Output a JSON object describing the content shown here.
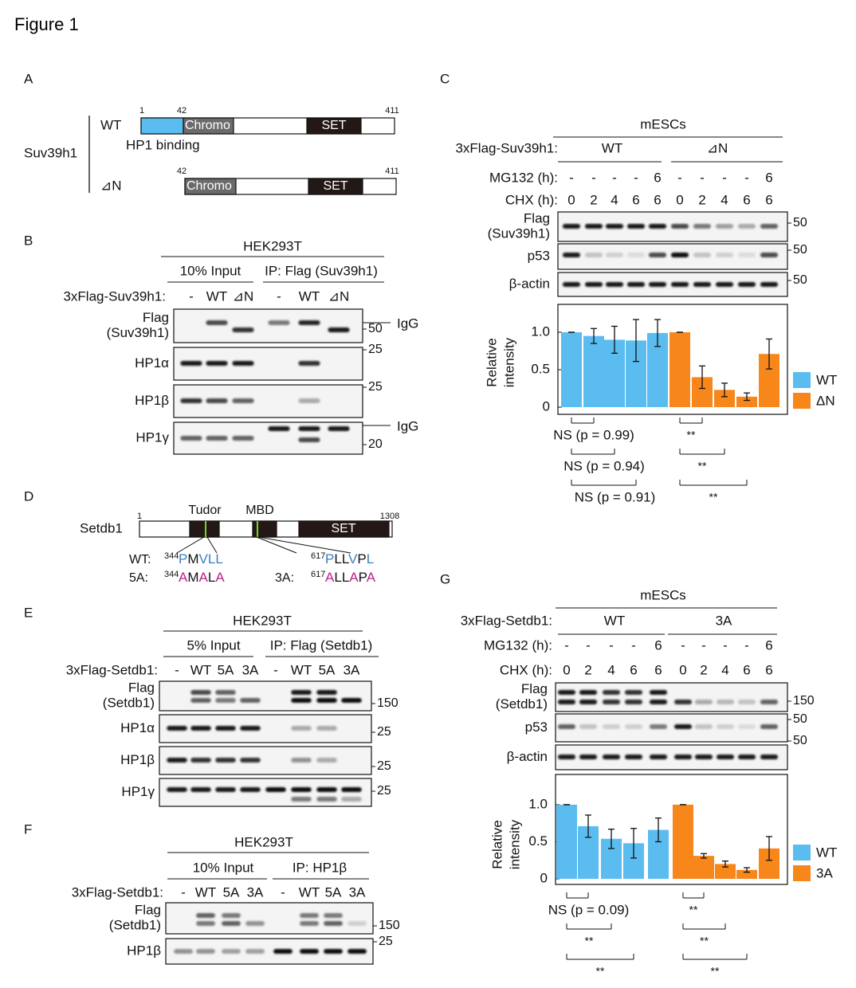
{
  "title": "Figure 1",
  "panel_a": {
    "label": "A",
    "protein": "Suv39h1",
    "constructs": [
      {
        "name": "WT",
        "start": 1,
        "mid": 42,
        "end": 411,
        "domains": [
          "Chromo",
          "SET"
        ],
        "note": "HP1 binding"
      },
      {
        "name": "⊿N",
        "mid": 42,
        "end": 411,
        "domains": [
          "Chromo",
          "SET"
        ]
      }
    ]
  },
  "panel_b": {
    "label": "B",
    "cell": "HEK293T",
    "groups": [
      "10% Input",
      "IP: Flag (Suv39h1)"
    ],
    "construct_label": "3xFlag-Suv39h1:",
    "lanes": [
      "-",
      "WT",
      "⊿N",
      "-",
      "WT",
      "⊿N"
    ],
    "rows": [
      [
        "Flag",
        "(Suv39h1)"
      ],
      [
        "HP1α"
      ],
      [
        "HP1β"
      ],
      [
        "HP1γ"
      ]
    ],
    "markers": [
      50,
      "IgG",
      25,
      25,
      "IgG",
      20
    ]
  },
  "panel_c": {
    "label": "C",
    "cell": "mESCs",
    "construct_label": "3xFlag-Suv39h1:",
    "groups": [
      "WT",
      "⊿N"
    ],
    "mg132_label": "MG132 (h):",
    "mg132": [
      "-",
      "-",
      "-",
      "-",
      6,
      "-",
      "-",
      "-",
      "-",
      6
    ],
    "chx_label": "CHX (h):",
    "chx": [
      0,
      2,
      4,
      6,
      6,
      0,
      2,
      4,
      6,
      6
    ],
    "rows": [
      [
        "Flag",
        "(Suv39h1)"
      ],
      [
        "p53"
      ],
      [
        "β-actin"
      ]
    ],
    "markers": [
      50,
      50,
      50
    ]
  },
  "panel_d": {
    "label": "D",
    "protein": "Setdb1",
    "start": 1,
    "end": 1308,
    "domains": [
      "Tudor",
      "MBD",
      "SET"
    ],
    "motifs": [
      {
        "name": "WT:",
        "position": 344,
        "sequence": "PMVLL"
      },
      {
        "name": "5A:",
        "position": 344,
        "sequence": "AMALA"
      },
      {
        "position": 617,
        "sequence": "PLLVPL"
      },
      {
        "name": "3A:",
        "position": 617,
        "sequence": "ALLAPA"
      }
    ]
  },
  "panel_e": {
    "label": "E",
    "cell": "HEK293T",
    "groups": [
      "5% Input",
      "IP: Flag (Setdb1)"
    ],
    "construct_label": "3xFlag-Setdb1:",
    "lanes": [
      "-",
      "WT",
      "5A",
      "3A",
      "-",
      "WT",
      "5A",
      "3A"
    ],
    "rows": [
      [
        "Flag",
        "(Setdb1)"
      ],
      [
        "HP1α"
      ],
      [
        "HP1β"
      ],
      [
        "HP1γ"
      ]
    ],
    "markers": [
      150,
      25,
      25,
      25
    ]
  },
  "panel_f": {
    "label": "F",
    "cell": "HEK293T",
    "groups": [
      "10% Input",
      "IP: HP1β"
    ],
    "construct_label": "3xFlag-Setdb1:",
    "lanes": [
      "-",
      "WT",
      "5A",
      "3A",
      "-",
      "WT",
      "5A",
      "3A"
    ],
    "rows": [
      [
        "Flag",
        "(Setdb1)"
      ],
      [
        "HP1β"
      ]
    ],
    "markers": [
      150,
      25
    ]
  },
  "panel_g": {
    "label": "G",
    "cell": "mESCs",
    "construct_label": "3xFlag-Setdb1:",
    "groups": [
      "WT",
      "3A"
    ],
    "mg132_label": "MG132 (h):",
    "mg132": [
      "-",
      "-",
      "-",
      "-",
      6,
      "-",
      "-",
      "-",
      "-",
      6
    ],
    "chx_label": "CHX (h):",
    "chx": [
      0,
      2,
      4,
      6,
      6,
      0,
      2,
      4,
      6,
      6
    ],
    "rows": [
      [
        "Flag",
        "(Setdb1)"
      ],
      [
        "p53"
      ],
      [
        "β-actin"
      ]
    ],
    "markers": [
      150,
      50,
      50
    ]
  },
  "chart_data": [
    {
      "type": "bar",
      "ylabel": [
        "Relative",
        "intensity"
      ],
      "ylim": [
        0,
        1.3
      ],
      "yticks": [
        0,
        0.5,
        {
          "value": 1,
          "label": "1.0"
        }
      ],
      "series": [
        {
          "name": "WT",
          "color": "#5bbcf0",
          "values": [
            1.0,
            0.95,
            0.9,
            0.89,
            0.99
          ],
          "errors": [
            0,
            0.1,
            0.18,
            0.28,
            0.18
          ]
        },
        {
          "name": "ΔN",
          "color": "#f7861b",
          "values": [
            1.0,
            0.4,
            0.23,
            0.14,
            0.71
          ],
          "errors": [
            0,
            0.15,
            0.09,
            0.05,
            0.2
          ]
        }
      ],
      "significance": [
        [
          "NS (p = 0.99)",
          "NS (p = 0.94)",
          "NS (p = 0.91)"
        ],
        [
          "**",
          "**",
          "**"
        ]
      ]
    },
    {
      "type": "bar",
      "ylabel": [
        "Relative",
        "intensity"
      ],
      "ylim": [
        0,
        1.3
      ],
      "yticks": [
        0,
        0.5,
        {
          "value": 1,
          "label": "1.0"
        }
      ],
      "series": [
        {
          "name": "WT",
          "color": "#5bbcf0",
          "values": [
            1.0,
            0.71,
            0.54,
            0.48,
            0.66
          ],
          "errors": [
            0,
            0.15,
            0.13,
            0.2,
            0.16
          ]
        },
        {
          "name": "3A",
          "color": "#f7861b",
          "values": [
            1.0,
            0.31,
            0.2,
            0.12,
            0.41
          ],
          "errors": [
            0,
            0.03,
            0.04,
            0.03,
            0.16
          ]
        }
      ],
      "significance": [
        [
          "NS (p = 0.09)",
          "**",
          "**"
        ],
        [
          "**",
          "**",
          "**"
        ]
      ]
    }
  ]
}
